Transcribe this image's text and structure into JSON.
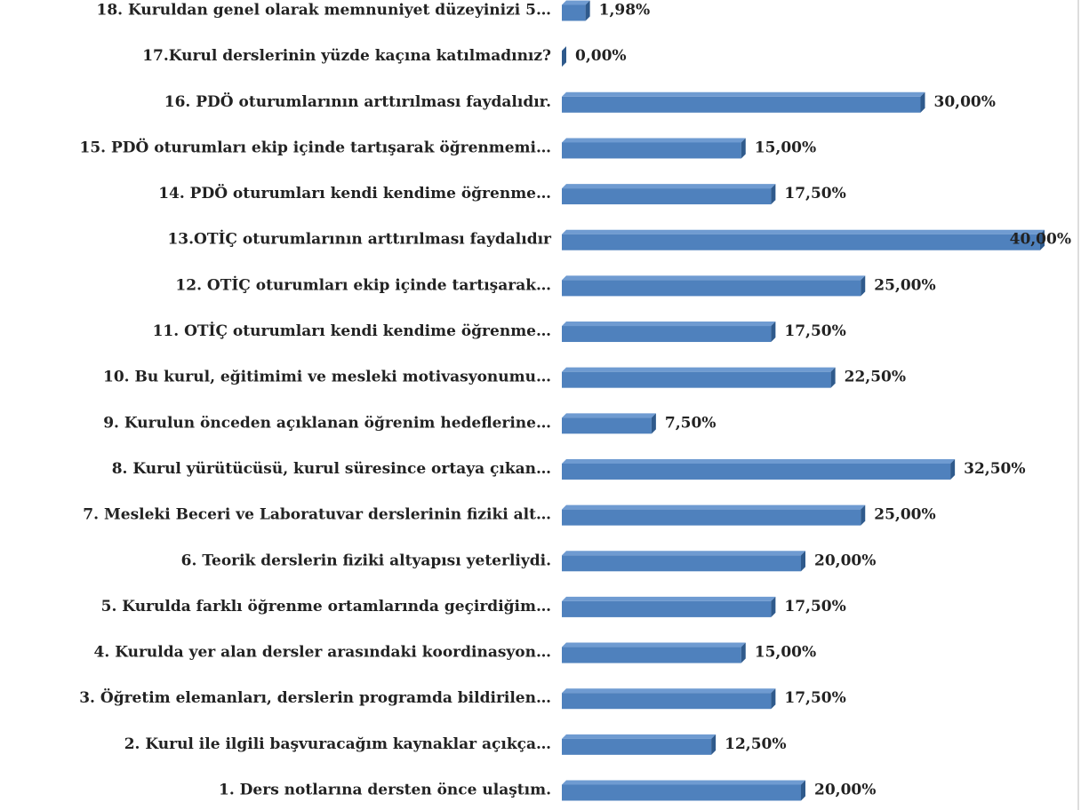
{
  "chart_data": {
    "type": "bar",
    "orientation": "horizontal",
    "categories": [
      "18. Kuruldan genel olarak memnuniyet düzeyinizi 5…",
      "17.Kurul derslerinin yüzde kaçına katılmadınız?",
      "16. PDÖ oturumlarının arttırılması faydalıdır.",
      "15. PDÖ  oturumları ekip içinde tartışarak öğrenmemi…",
      "14. PDÖ oturumları kendi kendime öğrenme…",
      "13.OTİÇ oturumlarının arttırılması faydalıdır",
      "12. OTİÇ  oturumları ekip içinde tartışarak…",
      "11. OTİÇ oturumları kendi kendime öğrenme…",
      "10. Bu kurul, eğitimimi ve mesleki motivasyonumu…",
      "9. Kurulun önceden açıklanan öğrenim hedeflerine…",
      "8. Kurul yürütücüsü, kurul süresince ortaya çıkan…",
      "7. Mesleki Beceri ve Laboratuvar derslerinin fiziki alt…",
      "6. Teorik derslerin fiziki altyapısı yeterliydi.",
      "5. Kurulda farklı öğrenme ortamlarında geçirdiğim…",
      "4. Kurulda yer alan dersler arasındaki koordinasyon…",
      "3. Öğretim elemanları, derslerin programda bildirilen…",
      "2. Kurul ile ilgili başvuracağım kaynaklar açıkça…",
      "1. Ders notlarına dersten önce ulaştım."
    ],
    "values": [
      1.98,
      0,
      30,
      15,
      17.5,
      40,
      25,
      17.5,
      22.5,
      7.5,
      32.5,
      25,
      20,
      17.5,
      15,
      17.5,
      12.5,
      20
    ],
    "value_labels": [
      "1,98%",
      "0,00%",
      "30,00%",
      "15,00%",
      "17,50%",
      "40,00%",
      "25,00%",
      "17,50%",
      "22,50%",
      "7,50%",
      "32,50%",
      "25,00%",
      "20,00%",
      "17,50%",
      "15,00%",
      "17,50%",
      "12,50%",
      "20,00%"
    ],
    "color": "#4f81bd",
    "xlim": [
      0,
      40
    ]
  }
}
